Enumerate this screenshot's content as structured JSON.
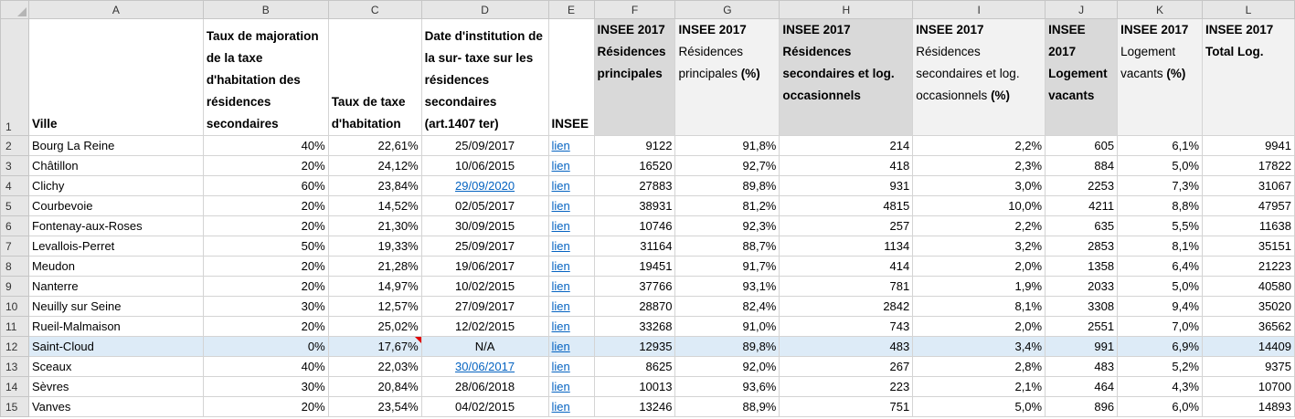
{
  "columns": [
    "A",
    "B",
    "C",
    "D",
    "E",
    "F",
    "G",
    "H",
    "I",
    "J",
    "K",
    "L"
  ],
  "header_row": {
    "row_number": "1",
    "A": "Ville",
    "B": "Taux de majoration de la taxe d'habitation des résidences secondaires",
    "C": "Taux de taxe d'habitation",
    "D": "Date d'institution de la sur- taxe sur les résidences secondaires (art.1407 ter)",
    "E": "INSEE",
    "F": "INSEE 2017 Résidences principales",
    "G_bold": "INSEE 2017",
    "G_normal": "Résidences principales",
    "G_suffix": "(%)",
    "H": "INSEE 2017 Résidences secondaires et log. occasionnels",
    "I_bold": "INSEE 2017",
    "I_normal": "Résidences secondaires et log. occasionnels",
    "I_suffix": "(%)",
    "J": "INSEE 2017 Logement vacants",
    "K_bold": "INSEE 2017",
    "K_normal": "Logement vacants",
    "K_suffix": "(%)",
    "L": "INSEE 2017 Total Log."
  },
  "rows": [
    {
      "n": "2",
      "ville": "Bourg La Reine",
      "maj": "40%",
      "taux": "22,61%",
      "date": "25/09/2017",
      "insee": "lien",
      "rp": "9122",
      "rp_pct": "91,8%",
      "rs": "214",
      "rs_pct": "2,2%",
      "lv": "605",
      "lv_pct": "6,1%",
      "total": "9941"
    },
    {
      "n": "3",
      "ville": "Châtillon",
      "maj": "20%",
      "taux": "24,12%",
      "date": "10/06/2015",
      "insee": "lien",
      "rp": "16520",
      "rp_pct": "92,7%",
      "rs": "418",
      "rs_pct": "2,3%",
      "lv": "884",
      "lv_pct": "5,0%",
      "total": "17822"
    },
    {
      "n": "4",
      "ville": "Clichy",
      "maj": "60%",
      "taux": "23,84%",
      "date": "29/09/2020",
      "insee": "lien",
      "rp": "27883",
      "rp_pct": "89,8%",
      "rs": "931",
      "rs_pct": "3,0%",
      "lv": "2253",
      "lv_pct": "7,3%",
      "total": "31067"
    },
    {
      "n": "5",
      "ville": "Courbevoie",
      "maj": "20%",
      "taux": "14,52%",
      "date": "02/05/2017",
      "insee": "lien",
      "rp": "38931",
      "rp_pct": "81,2%",
      "rs": "4815",
      "rs_pct": "10,0%",
      "lv": "4211",
      "lv_pct": "8,8%",
      "total": "47957"
    },
    {
      "n": "6",
      "ville": "Fontenay-aux-Roses",
      "maj": "20%",
      "taux": "21,30%",
      "date": "30/09/2015",
      "insee": "lien",
      "rp": "10746",
      "rp_pct": "92,3%",
      "rs": "257",
      "rs_pct": "2,2%",
      "lv": "635",
      "lv_pct": "5,5%",
      "total": "11638"
    },
    {
      "n": "7",
      "ville": "Levallois-Perret",
      "maj": "50%",
      "taux": "19,33%",
      "date": "25/09/2017",
      "insee": "lien",
      "rp": "31164",
      "rp_pct": "88,7%",
      "rs": "1134",
      "rs_pct": "3,2%",
      "lv": "2853",
      "lv_pct": "8,1%",
      "total": "35151"
    },
    {
      "n": "8",
      "ville": "Meudon",
      "maj": "20%",
      "taux": "21,28%",
      "date": "19/06/2017",
      "insee": "lien",
      "rp": "19451",
      "rp_pct": "91,7%",
      "rs": "414",
      "rs_pct": "2,0%",
      "lv": "1358",
      "lv_pct": "6,4%",
      "total": "21223"
    },
    {
      "n": "9",
      "ville": "Nanterre",
      "maj": "20%",
      "taux": "14,97%",
      "date": "10/02/2015",
      "insee": "lien",
      "rp": "37766",
      "rp_pct": "93,1%",
      "rs": "781",
      "rs_pct": "1,9%",
      "lv": "2033",
      "lv_pct": "5,0%",
      "total": "40580"
    },
    {
      "n": "10",
      "ville": "Neuilly sur Seine",
      "maj": "30%",
      "taux": "12,57%",
      "date": "27/09/2017",
      "insee": "lien",
      "rp": "28870",
      "rp_pct": "82,4%",
      "rs": "2842",
      "rs_pct": "8,1%",
      "lv": "3308",
      "lv_pct": "9,4%",
      "total": "35020"
    },
    {
      "n": "11",
      "ville": "Rueil-Malmaison",
      "maj": "20%",
      "taux": "25,02%",
      "date": "12/02/2015",
      "insee": "lien",
      "rp": "33268",
      "rp_pct": "91,0%",
      "rs": "743",
      "rs_pct": "2,0%",
      "lv": "2551",
      "lv_pct": "7,0%",
      "total": "36562"
    },
    {
      "n": "12",
      "ville": "Saint-Cloud",
      "maj": "0%",
      "taux": "17,67%",
      "date": "N/A",
      "insee": "lien",
      "rp": "12935",
      "rp_pct": "89,8%",
      "rs": "483",
      "rs_pct": "3,4%",
      "lv": "991",
      "lv_pct": "6,9%",
      "total": "14409"
    },
    {
      "n": "13",
      "ville": "Sceaux",
      "maj": "40%",
      "taux": "22,03%",
      "date": "30/06/2017",
      "insee": "lien",
      "rp": "8625",
      "rp_pct": "92,0%",
      "rs": "267",
      "rs_pct": "2,8%",
      "lv": "483",
      "lv_pct": "5,2%",
      "total": "9375"
    },
    {
      "n": "14",
      "ville": "Sèvres",
      "maj": "30%",
      "taux": "20,84%",
      "date": "28/06/2018",
      "insee": "lien",
      "rp": "10013",
      "rp_pct": "93,6%",
      "rs": "223",
      "rs_pct": "2,1%",
      "lv": "464",
      "lv_pct": "4,3%",
      "total": "10700"
    },
    {
      "n": "15",
      "ville": "Vanves",
      "maj": "20%",
      "taux": "23,54%",
      "date": "04/02/2015",
      "insee": "lien",
      "rp": "13246",
      "rp_pct": "88,9%",
      "rs": "751",
      "rs_pct": "5,0%",
      "lv": "896",
      "lv_pct": "6,0%",
      "total": "14893"
    }
  ],
  "colors": {
    "link": "#0563c1",
    "selected_row": "#ddebf7",
    "header_gray": "#d9d9d9",
    "header_light": "#f2f2f2",
    "comment_marker": "#e00000"
  }
}
